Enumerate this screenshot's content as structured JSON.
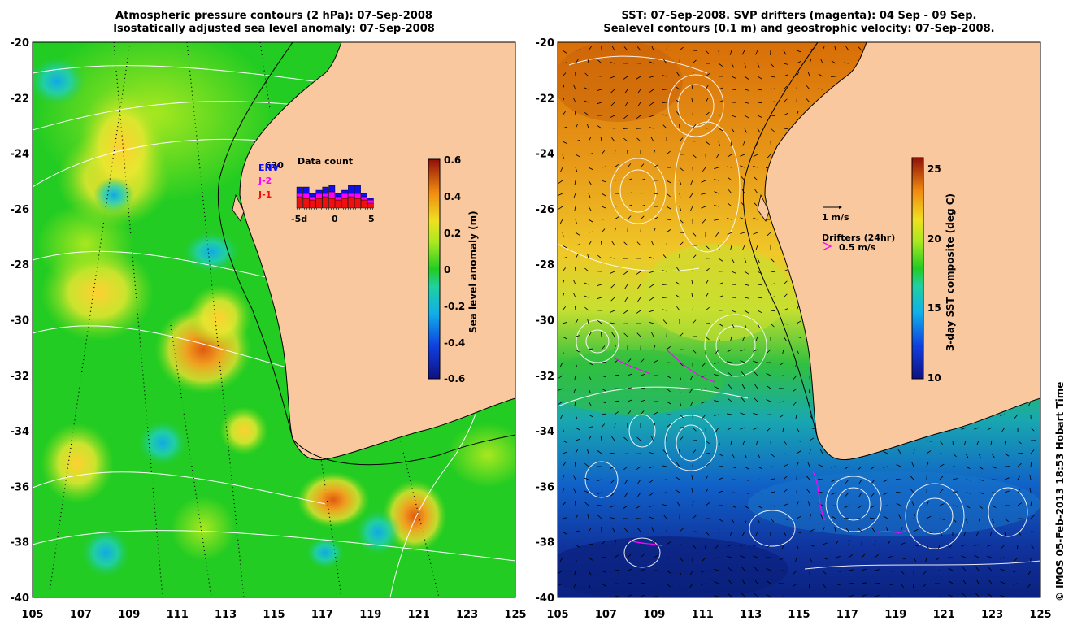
{
  "left_panel": {
    "title_line1": "Atmospheric pressure contours (2 hPa): 07-Sep-2008",
    "title_line2": "Isostatically adjusted sea level anomaly: 07-Sep-2008",
    "colorbar_label": "Sea level anomaly (m)",
    "colorbar_ticks": [
      "0.6",
      "0.4",
      "0.2",
      "0",
      "-0.2",
      "-0.4",
      "-0.6"
    ],
    "inset_title": "Data count",
    "inset_top_label": "630",
    "inset_missions": [
      "ENV",
      "J-2",
      "J-1"
    ],
    "inset_x_ticks": [
      "-5d",
      "0",
      "5"
    ],
    "mission_colors": {
      "ENV": "#1010ee",
      "J-2": "#ff00ff",
      "J-1": "#ee1010"
    },
    "inset_counts": {
      "J-1": [
        14,
        12,
        10,
        12,
        14,
        12,
        10,
        12,
        14,
        12,
        10,
        6
      ],
      "J-2": [
        4,
        6,
        4,
        6,
        4,
        8,
        4,
        6,
        4,
        6,
        4,
        4
      ],
      "ENV": [
        8,
        8,
        4,
        4,
        8,
        8,
        4,
        4,
        10,
        10,
        4,
        2
      ]
    }
  },
  "right_panel": {
    "title_line1": "SST: 07-Sep-2008. SVP drifters (magenta): 04 Sep - 09 Sep.",
    "title_line2": "Sealevel contours (0.1 m) and geostrophic velocity: 07-Sep-2008.",
    "colorbar_label": "3-day SST composite (deg C)",
    "colorbar_ticks": [
      "25",
      "20",
      "15",
      "10"
    ],
    "velocity_scale_label": "1 m/s",
    "drifter_label": "Drifters (24hr)",
    "drifter_scale_label": "0.5 m/s",
    "drifter_color": "#ff00ff"
  },
  "axes": {
    "x_ticks": [
      "105",
      "107",
      "109",
      "111",
      "113",
      "115",
      "117",
      "119",
      "121",
      "123",
      "125"
    ],
    "y_ticks": [
      "-20",
      "-22",
      "-24",
      "-26",
      "-28",
      "-30",
      "-32",
      "-34",
      "-36",
      "-38",
      "-40"
    ]
  },
  "colors": {
    "land": "#fac89e",
    "ocean_sla_base": "#22cc22",
    "sst_warm": "#e08a10",
    "sst_cool": "#0a2a90"
  },
  "credit": "© IMOS 05-Feb-2013 18:53 Hobart Time"
}
